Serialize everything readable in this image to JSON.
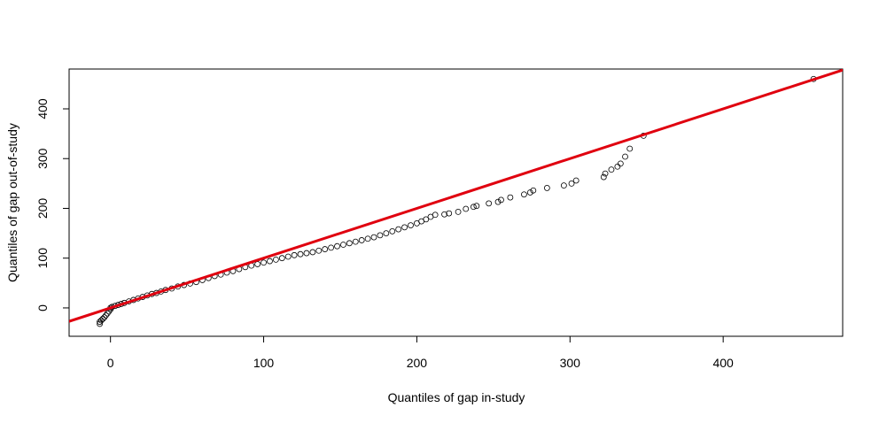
{
  "chart_data": {
    "type": "scatter",
    "title": "",
    "xlabel": "Quantiles of gap in-study",
    "ylabel": "Quantiles of gap out-of-study",
    "xlim": [
      -27,
      478
    ],
    "ylim": [
      -57,
      480
    ],
    "x_ticks": [
      0,
      100,
      200,
      300,
      400
    ],
    "y_ticks": [
      0,
      100,
      200,
      300,
      400
    ],
    "grid": false,
    "colors": {
      "points": "#000000",
      "reference_line": "#e0000f"
    },
    "reference_line": {
      "intercept": 0,
      "slope": 1,
      "color": "#e0000f"
    },
    "points": [
      [
        -7,
        -32
      ],
      [
        -7,
        -28
      ],
      [
        -6,
        -25
      ],
      [
        -5,
        -22
      ],
      [
        -4,
        -19
      ],
      [
        -3,
        -15
      ],
      [
        -2,
        -11
      ],
      [
        -1,
        -7
      ],
      [
        0,
        -3
      ],
      [
        0,
        0
      ],
      [
        1,
        2
      ],
      [
        3,
        4
      ],
      [
        5,
        6
      ],
      [
        7,
        8
      ],
      [
        9,
        10
      ],
      [
        12,
        13
      ],
      [
        15,
        16
      ],
      [
        18,
        19
      ],
      [
        21,
        22
      ],
      [
        24,
        25
      ],
      [
        27,
        28
      ],
      [
        30,
        30
      ],
      [
        33,
        33
      ],
      [
        36,
        36
      ],
      [
        40,
        39
      ],
      [
        44,
        43
      ],
      [
        48,
        46
      ],
      [
        52,
        49
      ],
      [
        56,
        52
      ],
      [
        60,
        56
      ],
      [
        64,
        60
      ],
      [
        68,
        64
      ],
      [
        72,
        67
      ],
      [
        76,
        71
      ],
      [
        80,
        74
      ],
      [
        84,
        78
      ],
      [
        88,
        82
      ],
      [
        92,
        85
      ],
      [
        96,
        88
      ],
      [
        100,
        91
      ],
      [
        104,
        94
      ],
      [
        108,
        97
      ],
      [
        112,
        100
      ],
      [
        116,
        103
      ],
      [
        120,
        106
      ],
      [
        124,
        108
      ],
      [
        128,
        110
      ],
      [
        132,
        112
      ],
      [
        136,
        115
      ],
      [
        140,
        118
      ],
      [
        144,
        121
      ],
      [
        148,
        124
      ],
      [
        152,
        127
      ],
      [
        156,
        130
      ],
      [
        160,
        133
      ],
      [
        164,
        136
      ],
      [
        168,
        139
      ],
      [
        172,
        142
      ],
      [
        176,
        146
      ],
      [
        180,
        150
      ],
      [
        184,
        154
      ],
      [
        188,
        158
      ],
      [
        192,
        162
      ],
      [
        196,
        166
      ],
      [
        200,
        170
      ],
      [
        203,
        174
      ],
      [
        206,
        178
      ],
      [
        209,
        183
      ],
      [
        212,
        187
      ],
      [
        218,
        188
      ],
      [
        221,
        190
      ],
      [
        227,
        193
      ],
      [
        232,
        199
      ],
      [
        237,
        203
      ],
      [
        239,
        205
      ],
      [
        247,
        210
      ],
      [
        253,
        213
      ],
      [
        255,
        217
      ],
      [
        261,
        222
      ],
      [
        270,
        228
      ],
      [
        274,
        232
      ],
      [
        276,
        236
      ],
      [
        285,
        241
      ],
      [
        296,
        246
      ],
      [
        301,
        250
      ],
      [
        304,
        256
      ],
      [
        322,
        263
      ],
      [
        323,
        270
      ],
      [
        327,
        278
      ],
      [
        331,
        284
      ],
      [
        333,
        290
      ],
      [
        336,
        304
      ],
      [
        339,
        320
      ],
      [
        348,
        346
      ],
      [
        459,
        460
      ]
    ]
  }
}
